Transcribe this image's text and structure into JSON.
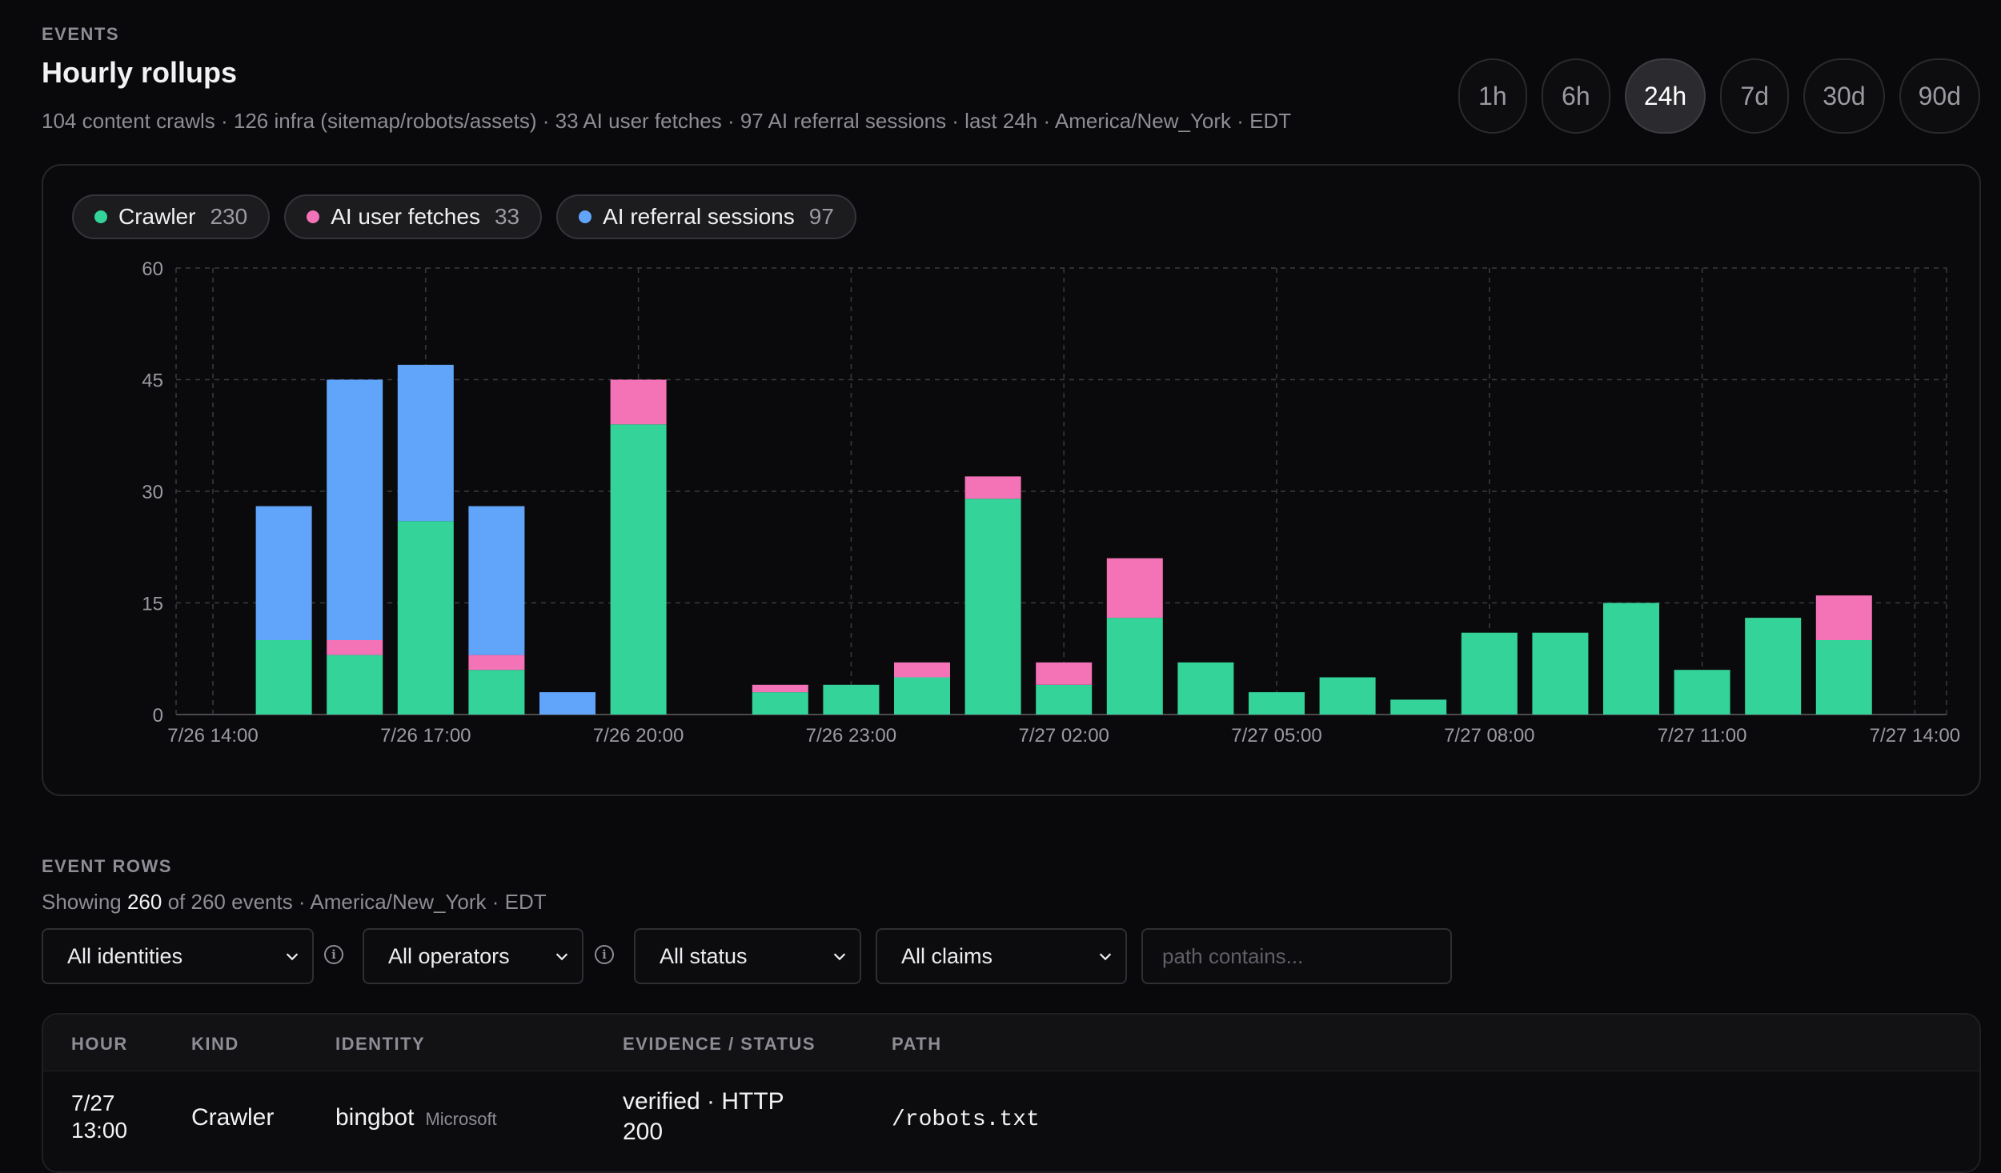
{
  "header": {
    "section_label": "EVENTS",
    "title": "Hourly rollups",
    "subtitle": "104 content crawls · 126 infra (sitemap/robots/assets) · 33 AI user fetches · 97 AI referral sessions · last 24h · America/New_York · EDT"
  },
  "ranges": {
    "options": [
      "1h",
      "6h",
      "24h",
      "7d",
      "30d",
      "90d"
    ],
    "selected": "24h"
  },
  "legend": [
    {
      "label": "Crawler",
      "count": "230",
      "color": "#34d399"
    },
    {
      "label": "AI user fetches",
      "count": "33",
      "color": "#f472b6"
    },
    {
      "label": "AI referral sessions",
      "count": "97",
      "color": "#60a5fa"
    }
  ],
  "chart_data": {
    "type": "bar",
    "stacked": true,
    "x": [
      "7/26 14:00",
      "7/26 15:00",
      "7/26 16:00",
      "7/26 17:00",
      "7/26 18:00",
      "7/26 19:00",
      "7/26 20:00",
      "7/26 21:00",
      "7/26 22:00",
      "7/26 23:00",
      "7/27 00:00",
      "7/27 01:00",
      "7/27 02:00",
      "7/27 03:00",
      "7/27 04:00",
      "7/27 05:00",
      "7/27 06:00",
      "7/27 07:00",
      "7/27 08:00",
      "7/27 09:00",
      "7/27 10:00",
      "7/27 11:00",
      "7/27 12:00",
      "7/27 13:00",
      "7/27 14:00"
    ],
    "series": [
      {
        "name": "Crawler",
        "color": "#34d399",
        "values": [
          0,
          10,
          8,
          26,
          6,
          0,
          39,
          0,
          3,
          4,
          5,
          29,
          4,
          13,
          7,
          3,
          5,
          2,
          11,
          11,
          15,
          6,
          13,
          10,
          0
        ]
      },
      {
        "name": "AI user fetches",
        "color": "#f472b6",
        "values": [
          0,
          0,
          2,
          0,
          2,
          0,
          6,
          0,
          1,
          0,
          2,
          3,
          3,
          8,
          0,
          0,
          0,
          0,
          0,
          0,
          0,
          0,
          0,
          6,
          0
        ]
      },
      {
        "name": "AI referral sessions",
        "color": "#60a5fa",
        "values": [
          0,
          18,
          35,
          21,
          20,
          3,
          0,
          0,
          0,
          0,
          0,
          0,
          0,
          0,
          0,
          0,
          0,
          0,
          0,
          0,
          0,
          0,
          0,
          0,
          0
        ]
      }
    ],
    "xtick_labels": [
      "7/26 14:00",
      "7/26 17:00",
      "7/26 20:00",
      "7/26 23:00",
      "7/27 02:00",
      "7/27 05:00",
      "7/27 08:00",
      "7/27 11:00",
      "7/27 14:00"
    ],
    "yticks": [
      0,
      15,
      30,
      45,
      60
    ],
    "ylim": [
      0,
      60
    ],
    "grid": true,
    "legend_position": "top-left"
  },
  "event_rows": {
    "section_label": "EVENT ROWS",
    "showing_prefix": "Showing",
    "showing_count": "260",
    "showing_suffix": "of 260 events · America/New_York · EDT"
  },
  "filters": {
    "identities": "All identities",
    "operators": "All operators",
    "status": "All status",
    "claims": "All claims",
    "path_placeholder": "path contains..."
  },
  "table": {
    "columns": [
      "HOUR",
      "KIND",
      "IDENTITY",
      "EVIDENCE / STATUS",
      "PATH"
    ],
    "rows": [
      {
        "hour_line1": "7/27",
        "hour_line2": "13:00",
        "kind": "Crawler",
        "identity": "bingbot",
        "operator": "Microsoft",
        "evidence_line1": "verified · HTTP",
        "evidence_line2": "200",
        "path": "/robots.txt"
      }
    ]
  }
}
